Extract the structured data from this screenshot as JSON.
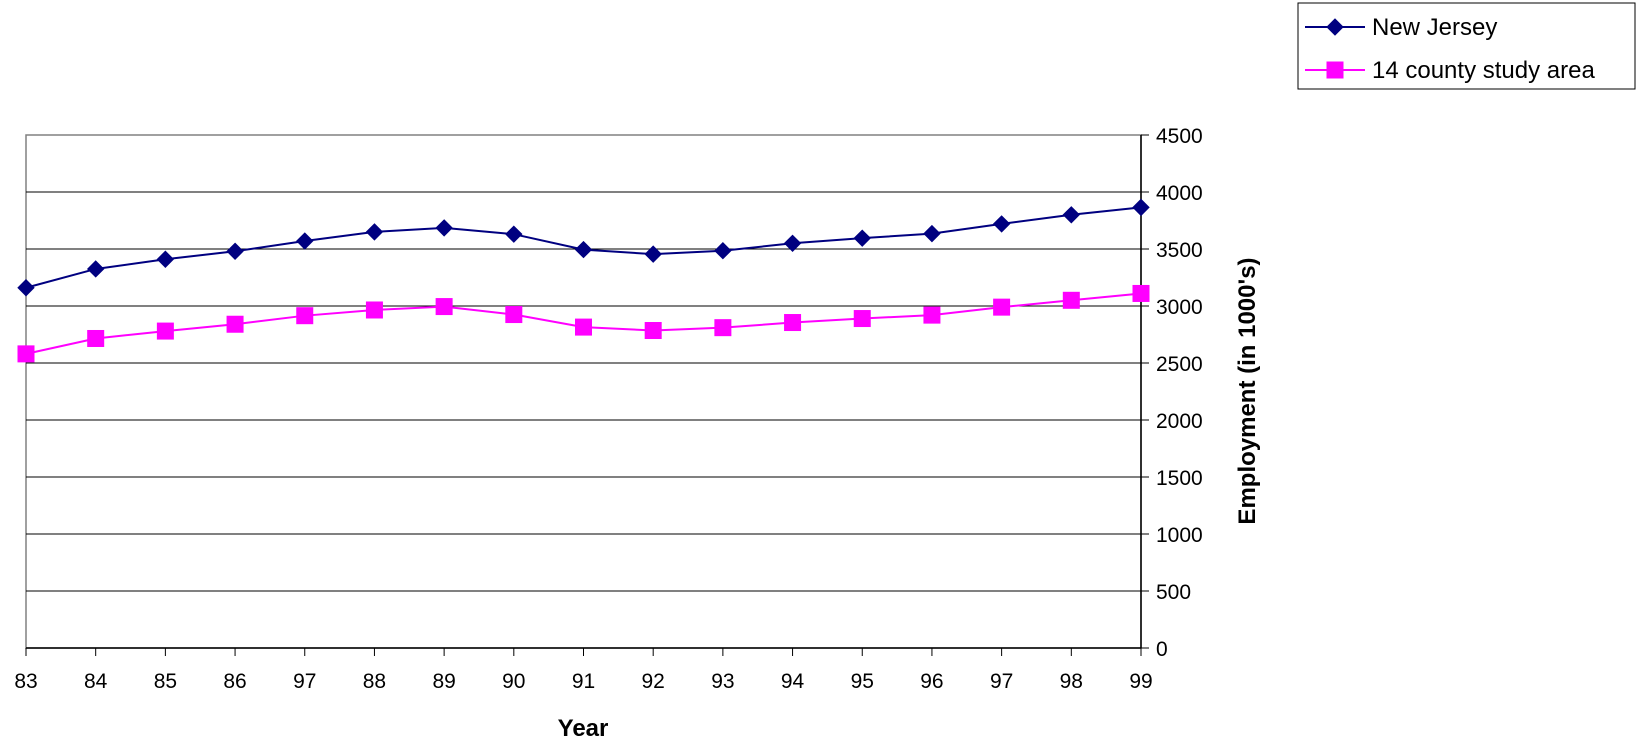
{
  "chart_data": {
    "type": "line",
    "xlabel": "Year",
    "ylabel": "Employment (in 1000's)",
    "categories": [
      "83",
      "84",
      "85",
      "86",
      "97",
      "88",
      "89",
      "90",
      "91",
      "92",
      "93",
      "94",
      "95",
      "96",
      "97",
      "98",
      "99"
    ],
    "ylim": [
      0,
      4500
    ],
    "yticks": [
      0,
      500,
      1000,
      1500,
      2000,
      2500,
      3000,
      3500,
      4000,
      4500
    ],
    "y_axis_side": "right",
    "grid": true,
    "legend_position": "top-right",
    "series": [
      {
        "name": "New Jersey",
        "color": "#000080",
        "marker": "diamond",
        "values": [
          3160,
          3325,
          3410,
          3480,
          3570,
          3650,
          3685,
          3630,
          3495,
          3455,
          3485,
          3550,
          3595,
          3635,
          3720,
          3800,
          3865
        ]
      },
      {
        "name": "14 county study area",
        "color": "#FF00FF",
        "marker": "square",
        "values": [
          2580,
          2715,
          2780,
          2840,
          2915,
          2965,
          2995,
          2925,
          2815,
          2785,
          2810,
          2855,
          2890,
          2920,
          2990,
          3050,
          3110
        ]
      }
    ]
  }
}
